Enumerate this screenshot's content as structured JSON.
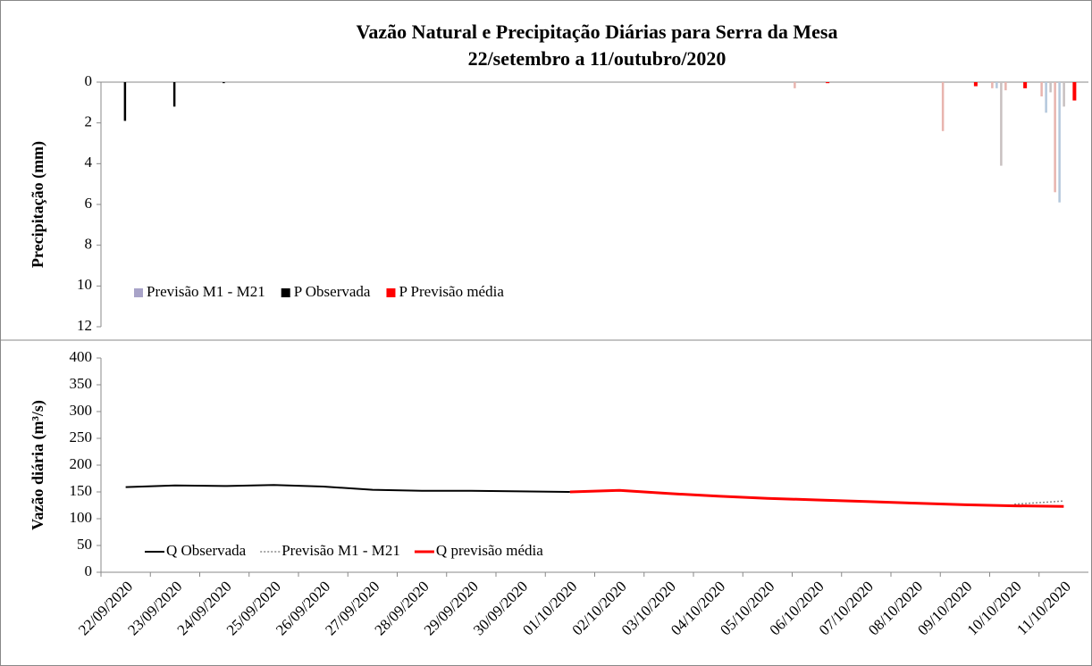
{
  "chart_data": [
    {
      "type": "bar",
      "title": "Vazão Natural e Precipitação Diárias para Serra da Mesa",
      "subtitle": "22/setembro a 11/outubro/2020",
      "y_label": "Precipitação (mm)",
      "ylim": [
        0,
        12
      ],
      "yticks": [
        0,
        2,
        4,
        6,
        8,
        10,
        12
      ],
      "inverted": true,
      "legend": "lower left",
      "series": [
        {
          "name": "Previsão M1 - M21",
          "color": "#a8a3c8",
          "member_colors": [
            "#e8b4ae",
            "#b4c8dc",
            "#c8c0c0"
          ],
          "values": [
            null,
            null,
            null,
            null,
            null,
            null,
            null,
            null,
            null,
            null,
            null,
            null,
            null,
            null,
            [
              0.3
            ],
            null,
            null,
            [
              2.4
            ],
            [
              0.3,
              0.3,
              4.1,
              0.4
            ],
            [
              0.7,
              1.5,
              0.5,
              5.4,
              5.9,
              1.2
            ]
          ]
        },
        {
          "name": "P Observada",
          "color": "#000000",
          "values": [
            1.9,
            1.2,
            0.05,
            null,
            null,
            null,
            null,
            null,
            null,
            null,
            null,
            null,
            null,
            null,
            null,
            null,
            null,
            null,
            null,
            null
          ]
        },
        {
          "name": "P Previsão média",
          "color": "#ff0000",
          "values": [
            null,
            null,
            null,
            null,
            null,
            null,
            null,
            null,
            null,
            null,
            null,
            null,
            null,
            null,
            0.05,
            null,
            null,
            0.2,
            0.3,
            0.9
          ]
        }
      ]
    },
    {
      "type": "line",
      "y_label": "Vazão diária (m³/s)",
      "ylim": [
        0,
        400
      ],
      "yticks": [
        0,
        50,
        100,
        150,
        200,
        250,
        300,
        350,
        400
      ],
      "legend": "lower left",
      "categories": [
        "22/09/2020",
        "23/09/2020",
        "24/09/2020",
        "25/09/2020",
        "26/09/2020",
        "27/09/2020",
        "28/09/2020",
        "29/09/2020",
        "30/09/2020",
        "01/10/2020",
        "02/10/2020",
        "03/10/2020",
        "04/10/2020",
        "05/10/2020",
        "06/10/2020",
        "07/10/2020",
        "08/10/2020",
        "09/10/2020",
        "10/10/2020",
        "11/10/2020"
      ],
      "series": [
        {
          "name": "Q Observada",
          "color": "#000000",
          "dash": false,
          "width": 2,
          "values": [
            159,
            162,
            161,
            163,
            160,
            154,
            152,
            152,
            151,
            150,
            null,
            null,
            null,
            null,
            null,
            null,
            null,
            null,
            null,
            null
          ]
        },
        {
          "name": "Previsão M1 - M21",
          "color": "#888888",
          "dash": true,
          "width": 1.5,
          "values": [
            null,
            null,
            null,
            null,
            null,
            null,
            null,
            null,
            null,
            null,
            null,
            null,
            null,
            null,
            null,
            null,
            null,
            null,
            127,
            133
          ]
        },
        {
          "name": "Q previsão média",
          "color": "#ff0000",
          "dash": false,
          "width": 3,
          "values": [
            null,
            null,
            null,
            null,
            null,
            null,
            null,
            null,
            null,
            150,
            153,
            147,
            142,
            138,
            135,
            132,
            129,
            126,
            124,
            123
          ]
        }
      ]
    }
  ]
}
